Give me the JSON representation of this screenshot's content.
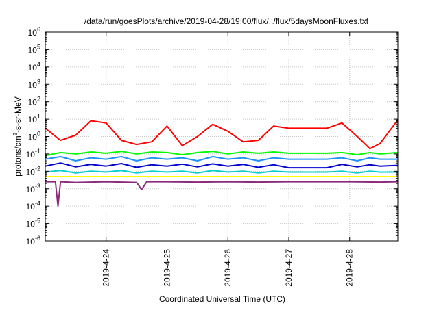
{
  "chart_data": {
    "type": "line",
    "title": "/data/run/goesPlots/archive/2019-04-28/19:00/flux/../flux/5daysMoonFluxes.txt",
    "xlabel": "Coordinated Universal Time (UTC)",
    "ylabel": {
      "prefix": "protons/cm",
      "sup": "2",
      "suffix": "-s-sr-MeV"
    },
    "y_scale": "log",
    "ylim_exponents": [
      -6,
      6
    ],
    "y_tick_labels": [
      {
        "base": "10",
        "exp": "6"
      },
      {
        "base": "10",
        "exp": "5"
      },
      {
        "base": "10",
        "exp": "4"
      },
      {
        "base": "10",
        "exp": "3"
      },
      {
        "base": "10",
        "exp": "2"
      },
      {
        "base": "10",
        "exp": "1"
      },
      {
        "base": "10",
        "exp": "0"
      },
      {
        "base": "10",
        "exp": "-1"
      },
      {
        "base": "10",
        "exp": "-2"
      },
      {
        "base": "10",
        "exp": "-3"
      },
      {
        "base": "10",
        "exp": "-4"
      },
      {
        "base": "10",
        "exp": "-5"
      },
      {
        "base": "10",
        "exp": "-6"
      }
    ],
    "x_range_days": [
      "2019-04-23T00:00",
      "2019-04-28T19:00"
    ],
    "x_ticks": [
      {
        "label": "2019-4-24",
        "value": "2019-04-24T00:00"
      },
      {
        "label": "2019-4-25",
        "value": "2019-04-25T00:00"
      },
      {
        "label": "2019-4-26",
        "value": "2019-04-26T00:00"
      },
      {
        "label": "2019-4-27",
        "value": "2019-04-27T00:00"
      },
      {
        "label": "2019-4-28",
        "value": "2019-04-28T00:00"
      }
    ],
    "grid": true,
    "series": [
      {
        "color": "#ff0000",
        "points": [
          [
            "2019-04-23T00:00",
            3
          ],
          [
            "2019-04-23T06:00",
            0.6
          ],
          [
            "2019-04-23T12:00",
            1.2
          ],
          [
            "2019-04-23T18:00",
            8
          ],
          [
            "2019-04-24T00:00",
            6
          ],
          [
            "2019-04-24T06:00",
            0.6
          ],
          [
            "2019-04-24T12:00",
            0.35
          ],
          [
            "2019-04-24T18:00",
            0.5
          ],
          [
            "2019-04-25T00:00",
            4
          ],
          [
            "2019-04-25T06:00",
            0.3
          ],
          [
            "2019-04-25T12:00",
            1.0
          ],
          [
            "2019-04-25T18:00",
            5
          ],
          [
            "2019-04-26T00:00",
            2
          ],
          [
            "2019-04-26T06:00",
            0.5
          ],
          [
            "2019-04-26T12:00",
            0.6
          ],
          [
            "2019-04-26T18:00",
            4
          ],
          [
            "2019-04-27T00:00",
            3
          ],
          [
            "2019-04-27T12:00",
            3
          ],
          [
            "2019-04-27T15:00",
            3
          ],
          [
            "2019-04-27T21:00",
            6
          ],
          [
            "2019-04-28T03:00",
            1.0
          ],
          [
            "2019-04-28T08:00",
            0.2
          ],
          [
            "2019-04-28T12:00",
            0.4
          ],
          [
            "2019-04-28T19:00",
            9
          ]
        ]
      },
      {
        "color": "#00ff00",
        "points": [
          [
            "2019-04-23T00:00",
            0.08
          ],
          [
            "2019-04-23T06:00",
            0.12
          ],
          [
            "2019-04-23T12:00",
            0.1
          ],
          [
            "2019-04-23T18:00",
            0.13
          ],
          [
            "2019-04-24T00:00",
            0.11
          ],
          [
            "2019-04-24T06:00",
            0.14
          ],
          [
            "2019-04-24T12:00",
            0.1
          ],
          [
            "2019-04-24T18:00",
            0.13
          ],
          [
            "2019-04-25T00:00",
            0.12
          ],
          [
            "2019-04-25T06:00",
            0.09
          ],
          [
            "2019-04-25T12:00",
            0.12
          ],
          [
            "2019-04-25T18:00",
            0.14
          ],
          [
            "2019-04-26T00:00",
            0.1
          ],
          [
            "2019-04-26T06:00",
            0.13
          ],
          [
            "2019-04-26T12:00",
            0.11
          ],
          [
            "2019-04-26T18:00",
            0.13
          ],
          [
            "2019-04-27T00:00",
            0.11
          ],
          [
            "2019-04-27T12:00",
            0.11
          ],
          [
            "2019-04-27T15:00",
            0.11
          ],
          [
            "2019-04-27T21:00",
            0.12
          ],
          [
            "2019-04-28T03:00",
            0.09
          ],
          [
            "2019-04-28T08:00",
            0.12
          ],
          [
            "2019-04-28T12:00",
            0.1
          ],
          [
            "2019-04-28T19:00",
            0.12
          ]
        ]
      },
      {
        "color": "#1e90ff",
        "points": [
          [
            "2019-04-23T00:00",
            0.05
          ],
          [
            "2019-04-23T06:00",
            0.07
          ],
          [
            "2019-04-23T12:00",
            0.04
          ],
          [
            "2019-04-23T18:00",
            0.06
          ],
          [
            "2019-04-24T00:00",
            0.05
          ],
          [
            "2019-04-24T06:00",
            0.07
          ],
          [
            "2019-04-24T12:00",
            0.04
          ],
          [
            "2019-04-24T18:00",
            0.06
          ],
          [
            "2019-04-25T00:00",
            0.05
          ],
          [
            "2019-04-25T06:00",
            0.06
          ],
          [
            "2019-04-25T12:00",
            0.04
          ],
          [
            "2019-04-25T18:00",
            0.07
          ],
          [
            "2019-04-26T00:00",
            0.05
          ],
          [
            "2019-04-26T06:00",
            0.06
          ],
          [
            "2019-04-26T12:00",
            0.04
          ],
          [
            "2019-04-26T18:00",
            0.06
          ],
          [
            "2019-04-27T00:00",
            0.05
          ],
          [
            "2019-04-27T12:00",
            0.05
          ],
          [
            "2019-04-27T15:00",
            0.05
          ],
          [
            "2019-04-27T21:00",
            0.06
          ],
          [
            "2019-04-28T03:00",
            0.04
          ],
          [
            "2019-04-28T08:00",
            0.06
          ],
          [
            "2019-04-28T12:00",
            0.05
          ],
          [
            "2019-04-28T19:00",
            0.05
          ]
        ]
      },
      {
        "color": "#0000cd",
        "points": [
          [
            "2019-04-23T00:00",
            0.02
          ],
          [
            "2019-04-23T06:00",
            0.03
          ],
          [
            "2019-04-23T12:00",
            0.018
          ],
          [
            "2019-04-23T18:00",
            0.025
          ],
          [
            "2019-04-24T00:00",
            0.02
          ],
          [
            "2019-04-24T06:00",
            0.028
          ],
          [
            "2019-04-24T12:00",
            0.017
          ],
          [
            "2019-04-24T18:00",
            0.024
          ],
          [
            "2019-04-25T00:00",
            0.02
          ],
          [
            "2019-04-25T06:00",
            0.026
          ],
          [
            "2019-04-25T12:00",
            0.018
          ],
          [
            "2019-04-25T18:00",
            0.027
          ],
          [
            "2019-04-26T00:00",
            0.02
          ],
          [
            "2019-04-26T06:00",
            0.025
          ],
          [
            "2019-04-26T12:00",
            0.017
          ],
          [
            "2019-04-26T18:00",
            0.024
          ],
          [
            "2019-04-27T00:00",
            0.016
          ],
          [
            "2019-04-27T12:00",
            0.016
          ],
          [
            "2019-04-27T15:00",
            0.016
          ],
          [
            "2019-04-27T21:00",
            0.025
          ],
          [
            "2019-04-28T03:00",
            0.018
          ],
          [
            "2019-04-28T08:00",
            0.024
          ],
          [
            "2019-04-28T12:00",
            0.02
          ],
          [
            "2019-04-28T19:00",
            0.022
          ]
        ]
      },
      {
        "color": "#00ced1",
        "points": [
          [
            "2019-04-23T00:00",
            0.009
          ],
          [
            "2019-04-23T06:00",
            0.011
          ],
          [
            "2019-04-23T12:00",
            0.008
          ],
          [
            "2019-04-23T18:00",
            0.01
          ],
          [
            "2019-04-24T00:00",
            0.009
          ],
          [
            "2019-04-24T06:00",
            0.011
          ],
          [
            "2019-04-24T12:00",
            0.008
          ],
          [
            "2019-04-24T18:00",
            0.01
          ],
          [
            "2019-04-25T00:00",
            0.009
          ],
          [
            "2019-04-25T06:00",
            0.01
          ],
          [
            "2019-04-25T12:00",
            0.008
          ],
          [
            "2019-04-25T18:00",
            0.011
          ],
          [
            "2019-04-26T00:00",
            0.009
          ],
          [
            "2019-04-26T06:00",
            0.01
          ],
          [
            "2019-04-26T12:00",
            0.008
          ],
          [
            "2019-04-26T18:00",
            0.01
          ],
          [
            "2019-04-27T00:00",
            0.009
          ],
          [
            "2019-04-27T12:00",
            0.009
          ],
          [
            "2019-04-27T15:00",
            0.009
          ],
          [
            "2019-04-27T21:00",
            0.01
          ],
          [
            "2019-04-28T03:00",
            0.008
          ],
          [
            "2019-04-28T08:00",
            0.01
          ],
          [
            "2019-04-28T12:00",
            0.009
          ],
          [
            "2019-04-28T19:00",
            0.009
          ]
        ]
      },
      {
        "color": "#ffff00",
        "points": [
          [
            "2019-04-23T00:00",
            0.005
          ],
          [
            "2019-04-28T19:00",
            0.005
          ]
        ]
      },
      {
        "color": "#8b2a7a",
        "points": [
          [
            "2019-04-23T00:00",
            0.0025
          ],
          [
            "2019-04-23T04:00",
            0.0025
          ],
          [
            "2019-04-23T05:00",
            0.0001
          ],
          [
            "2019-04-23T06:00",
            0.0025
          ],
          [
            "2019-04-23T12:00",
            0.0023
          ],
          [
            "2019-04-24T00:00",
            0.0025
          ],
          [
            "2019-04-24T12:00",
            0.0023
          ],
          [
            "2019-04-24T14:00",
            0.0009
          ],
          [
            "2019-04-24T16:00",
            0.0025
          ],
          [
            "2019-04-25T00:00",
            0.0025
          ],
          [
            "2019-04-25T12:00",
            0.0024
          ],
          [
            "2019-04-26T00:00",
            0.0025
          ],
          [
            "2019-04-26T12:00",
            0.0024
          ],
          [
            "2019-04-27T00:00",
            0.0025
          ],
          [
            "2019-04-27T12:00",
            0.0025
          ],
          [
            "2019-04-27T15:00",
            0.0025
          ],
          [
            "2019-04-28T00:00",
            0.0025
          ],
          [
            "2019-04-28T12:00",
            0.0024
          ],
          [
            "2019-04-28T19:00",
            0.0025
          ]
        ]
      }
    ]
  }
}
